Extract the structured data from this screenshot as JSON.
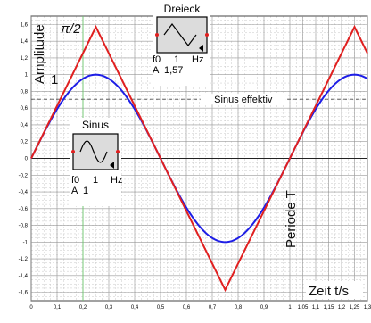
{
  "chart_data": {
    "type": "line",
    "title": "",
    "xlabel": "Zeit t/s",
    "ylabel": "Amplitude",
    "xlim": [
      0,
      1.3
    ],
    "ylim": [
      -1.7,
      1.7
    ],
    "grid": true,
    "x_ticks": [
      "0",
      "0,1",
      "0,2",
      "0,3",
      "0,4",
      "0,5",
      "0,6",
      "0,7",
      "0,8",
      "0,9",
      "1",
      "1,05",
      "1,1",
      "1,15",
      "1,2",
      "1,25",
      "1,3"
    ],
    "x_tick_values": [
      0,
      0.1,
      0.2,
      0.3,
      0.4,
      0.5,
      0.6,
      0.7,
      0.8,
      0.9,
      1.0,
      1.05,
      1.1,
      1.15,
      1.2,
      1.25,
      1.3
    ],
    "y_ticks": [
      "1,6",
      "1,4",
      "1,2",
      "1",
      "0,8",
      "0,6",
      "0,4",
      "0,2",
      "0",
      "-0,2",
      "-0,4",
      "-0,6",
      "-0,8",
      "-1",
      "-1,2",
      "-1,4",
      "-1,6"
    ],
    "y_tick_values": [
      1.6,
      1.4,
      1.2,
      1.0,
      0.8,
      0.6,
      0.4,
      0.2,
      0,
      -0.2,
      -0.4,
      -0.6,
      -0.8,
      -1.0,
      -1.2,
      -1.4,
      -1.6
    ],
    "series": [
      {
        "shape": "sine",
        "color": "#1e1ee6",
        "frequency_hz": 1,
        "amplitude": 1,
        "x": [
          0,
          0.05,
          0.1,
          0.15,
          0.2,
          0.25,
          0.3,
          0.35,
          0.4,
          0.45,
          0.5,
          0.55,
          0.6,
          0.65,
          0.7,
          0.75,
          0.8,
          0.85,
          0.9,
          0.95,
          1.0,
          1.05,
          1.1,
          1.15,
          1.2,
          1.25,
          1.3
        ],
        "y": [
          0,
          0.309,
          0.588,
          0.809,
          0.951,
          1.0,
          0.951,
          0.809,
          0.588,
          0.309,
          0,
          -0.309,
          -0.588,
          -0.809,
          -0.951,
          -1.0,
          -0.951,
          -0.809,
          -0.588,
          -0.309,
          0,
          0.309,
          0.588,
          0.809,
          0.951,
          1.0,
          0.951
        ]
      },
      {
        "shape": "triangle",
        "color": "#e02020",
        "frequency_hz": 1,
        "amplitude": 1.57,
        "x": [
          0,
          0.25,
          0.75,
          1.25,
          1.3
        ],
        "y": [
          0,
          1.57,
          -1.57,
          1.57,
          1.256
        ]
      }
    ],
    "reference_lines": [
      {
        "label": "Sinus effektiv",
        "y": 0.707,
        "style": "dashed",
        "color": "#555555"
      }
    ],
    "markers": [
      {
        "x": 0.2,
        "color": "#66cc66",
        "style": "solid"
      }
    ],
    "annotations": {
      "pi_half": "π/2",
      "one": "1",
      "period": "Periode T"
    },
    "blocks": [
      {
        "id": "dreieck",
        "title": "Dreieck",
        "f_label": "f0",
        "f_value": "1",
        "f_unit": "Hz",
        "a_label": "A",
        "a_value": "1,57"
      },
      {
        "id": "sinus",
        "title": "Sinus",
        "f_label": "f0",
        "f_value": "1",
        "f_unit": "Hz",
        "a_label": "A",
        "a_value": "1"
      }
    ]
  }
}
